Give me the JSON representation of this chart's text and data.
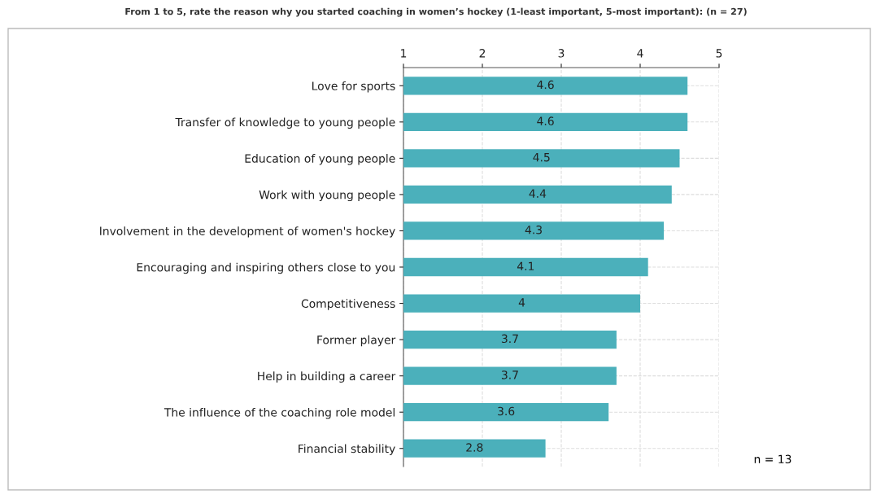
{
  "chart_data": {
    "type": "bar",
    "orientation": "horizontal",
    "title": "From 1 to 5, rate the reason why you started coaching in women’s hockey (1-least important, 5-most important): (n = 27)",
    "categories": [
      "Love for sports",
      "Transfer of knowledge to young people",
      "Education of young people",
      "Work with young people",
      "Involvement in the development of women's hockey",
      "Encouraging and inspiring others close to you",
      "Competitiveness",
      "Former player",
      "Help in building a career",
      "The influence of the coaching role model",
      "Financial stability"
    ],
    "values": [
      4.6,
      4.6,
      4.5,
      4.4,
      4.3,
      4.1,
      4,
      3.7,
      3.7,
      3.6,
      2.8
    ],
    "color": "#4bb0bb",
    "xlim": [
      1,
      5
    ],
    "xticks": [
      1,
      2,
      3,
      4,
      5
    ],
    "grid": true,
    "data_labels": true,
    "annotations": [
      "n = 13"
    ]
  }
}
